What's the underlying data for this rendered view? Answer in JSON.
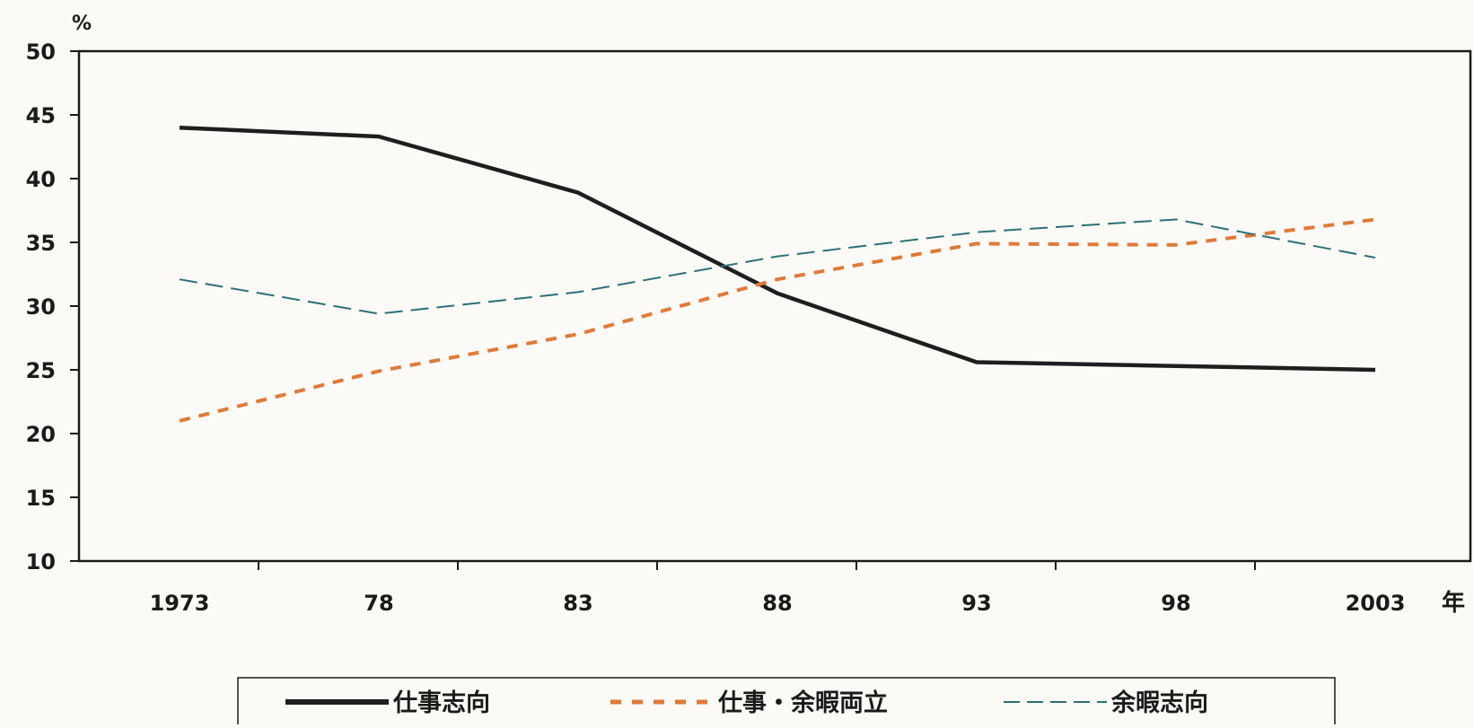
{
  "chart_data": {
    "type": "line",
    "y_unit": "%",
    "x_unit": "年",
    "x": [
      1973,
      1978,
      1983,
      1988,
      1993,
      1998,
      2003
    ],
    "x_tick_labels": [
      "1973",
      "78",
      "83",
      "88",
      "93",
      "98",
      "2003"
    ],
    "ylim": [
      10,
      50
    ],
    "y_ticks": [
      10,
      15,
      20,
      25,
      30,
      35,
      40,
      45,
      50
    ],
    "grid": false,
    "legend_position": "bottom",
    "series": [
      {
        "name": "仕事志向",
        "values": [
          44,
          43.3,
          38.9,
          31,
          25.6,
          25.3,
          25
        ],
        "color": "#1e1e1e",
        "style": "solid"
      },
      {
        "name": "仕事・余暇両立",
        "values": [
          21,
          24.9,
          27.8,
          32.1,
          34.9,
          34.8,
          36.8
        ],
        "color": "#e07a3a",
        "style": "dashed"
      },
      {
        "name": "余暇志向",
        "values": [
          32.1,
          29.4,
          31.1,
          33.9,
          35.8,
          36.8,
          33.8
        ],
        "color": "#2e6f78",
        "style": "dashed"
      }
    ]
  }
}
